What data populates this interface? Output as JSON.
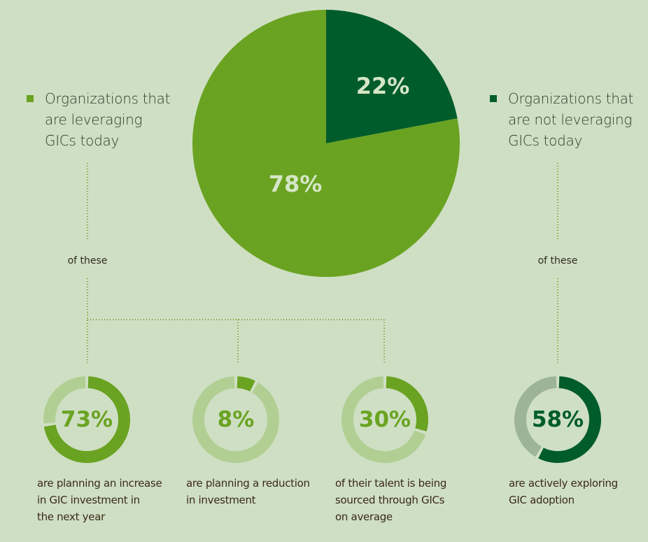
{
  "colors": {
    "background": "#cfdfc4",
    "leveraging": "#6aa321",
    "not_leveraging": "#005c2b",
    "track_light": "#b1cf93",
    "track_grey": "#9db596",
    "pie_label": "#d5e6c6"
  },
  "chart_data": [
    {
      "type": "pie",
      "slices": [
        {
          "label": "Organizations that are not leveraging GICs today",
          "value": 22,
          "display": "22%"
        },
        {
          "label": "Organizations that are leveraging GICs today",
          "value": 78,
          "display": "78%"
        }
      ]
    },
    {
      "type": "donut",
      "value": 73,
      "display": "73%",
      "description": "are planning an increase in GIC investment in the next year"
    },
    {
      "type": "donut",
      "value": 8,
      "display": "8%",
      "description": "are planning a reduction in investment"
    },
    {
      "type": "donut",
      "value": 30,
      "display": "30%",
      "description": "of their talent is being sourced through GICs on average"
    },
    {
      "type": "donut",
      "value": 58,
      "display": "58%",
      "description": "are actively exploring GIC adoption"
    }
  ],
  "legend": {
    "left": [
      "Organizations that",
      "are leveraging",
      "GICs today"
    ],
    "right": [
      "Organizations that",
      "are not leveraging",
      "GICs today"
    ]
  },
  "of_these": "of these",
  "descriptions": [
    [
      "are planning an increase",
      "in GIC investment in",
      "the next year"
    ],
    [
      "are planning a reduction",
      "in investment"
    ],
    [
      "of their talent is being",
      "sourced through GICs",
      "on average"
    ],
    [
      "are actively exploring",
      "GIC adoption"
    ]
  ]
}
